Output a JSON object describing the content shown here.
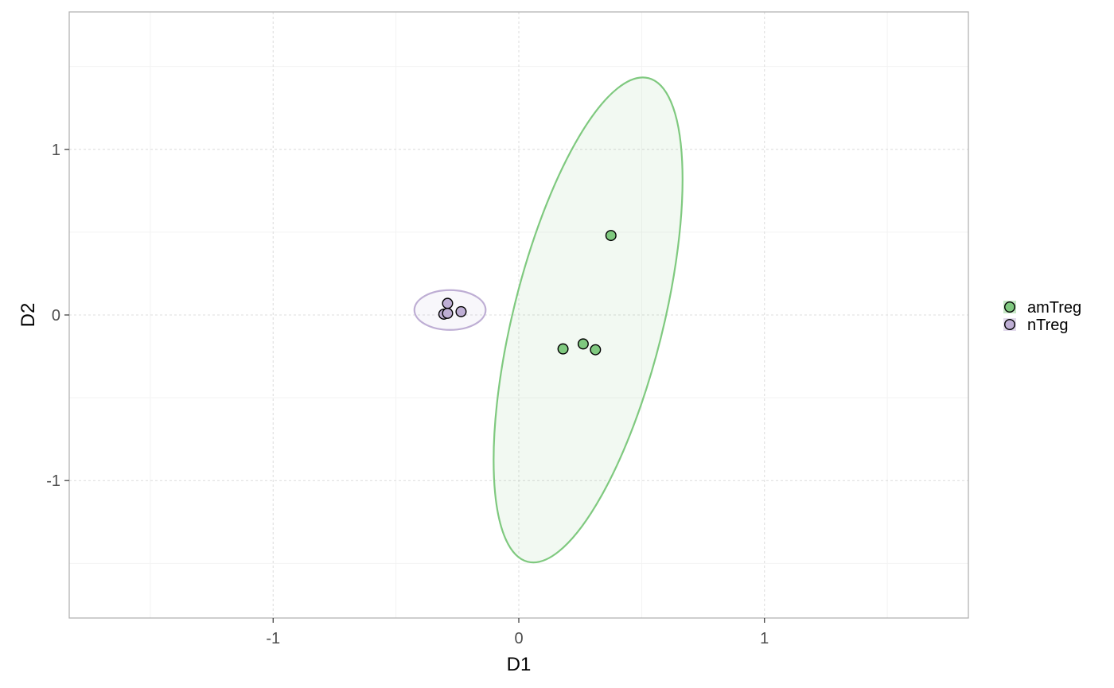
{
  "chart_data": {
    "type": "scatter",
    "xlabel": "D1",
    "ylabel": "D2",
    "xlim": [
      -1.83,
      1.83
    ],
    "ylim": [
      -1.83,
      1.83
    ],
    "x_ticks": [
      -1,
      0,
      1
    ],
    "y_ticks": [
      -1,
      0,
      1
    ],
    "x_tick_labels": [
      "-1",
      "0",
      "1"
    ],
    "y_tick_labels": [
      "-1",
      "0",
      "1"
    ],
    "grid": true,
    "legend_position": "right",
    "series": [
      {
        "name": "amTreg",
        "color": "#7fc97f",
        "points": [
          {
            "x": 0.375,
            "y": 0.48
          },
          {
            "x": 0.18,
            "y": -0.205
          },
          {
            "x": 0.262,
            "y": -0.175
          },
          {
            "x": 0.312,
            "y": -0.21
          }
        ],
        "ellipse": {
          "cx": 0.282,
          "cy": -0.03,
          "rx": 0.305,
          "ry": 1.505,
          "angle_deg": 14
        }
      },
      {
        "name": "nTreg",
        "color": "#beaed4",
        "points": [
          {
            "x": -0.29,
            "y": 0.07
          },
          {
            "x": -0.305,
            "y": 0.005
          },
          {
            "x": -0.235,
            "y": 0.02
          },
          {
            "x": -0.29,
            "y": 0.01
          }
        ],
        "ellipse": {
          "cx": -0.28,
          "cy": 0.03,
          "rx": 0.145,
          "ry": 0.12,
          "angle_deg": 0
        }
      }
    ]
  }
}
